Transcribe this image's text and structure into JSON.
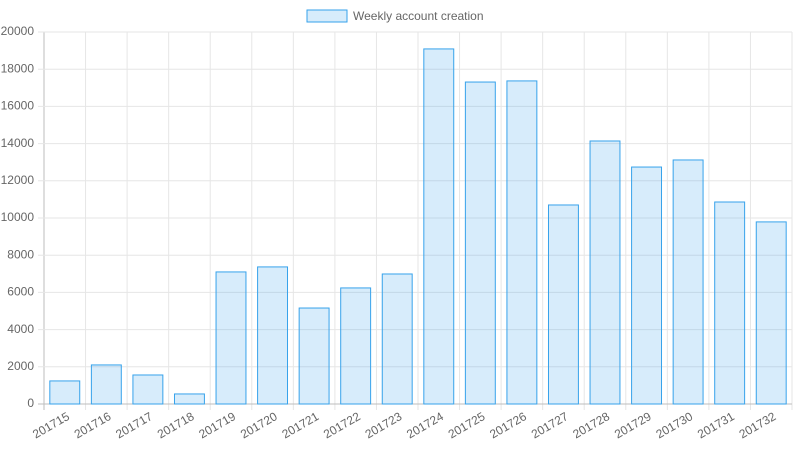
{
  "chart_data": {
    "type": "bar",
    "categories": [
      "201715",
      "201716",
      "201717",
      "201718",
      "201719",
      "201720",
      "201721",
      "201722",
      "201723",
      "201724",
      "201725",
      "201726",
      "201727",
      "201728",
      "201729",
      "201730",
      "201731",
      "201732"
    ],
    "series": [
      {
        "name": "Weekly account creation",
        "color": "#36a2eb",
        "values": [
          1240,
          2100,
          1560,
          540,
          7100,
          7370,
          5160,
          6240,
          6990,
          19090,
          17310,
          17370,
          10700,
          14140,
          12740,
          13120,
          10860,
          9790
        ]
      }
    ],
    "ylim": [
      0,
      20000
    ],
    "yticks": [
      0,
      2000,
      4000,
      6000,
      8000,
      10000,
      12000,
      14000,
      16000,
      18000,
      20000
    ],
    "grid": true,
    "legend": "top"
  }
}
